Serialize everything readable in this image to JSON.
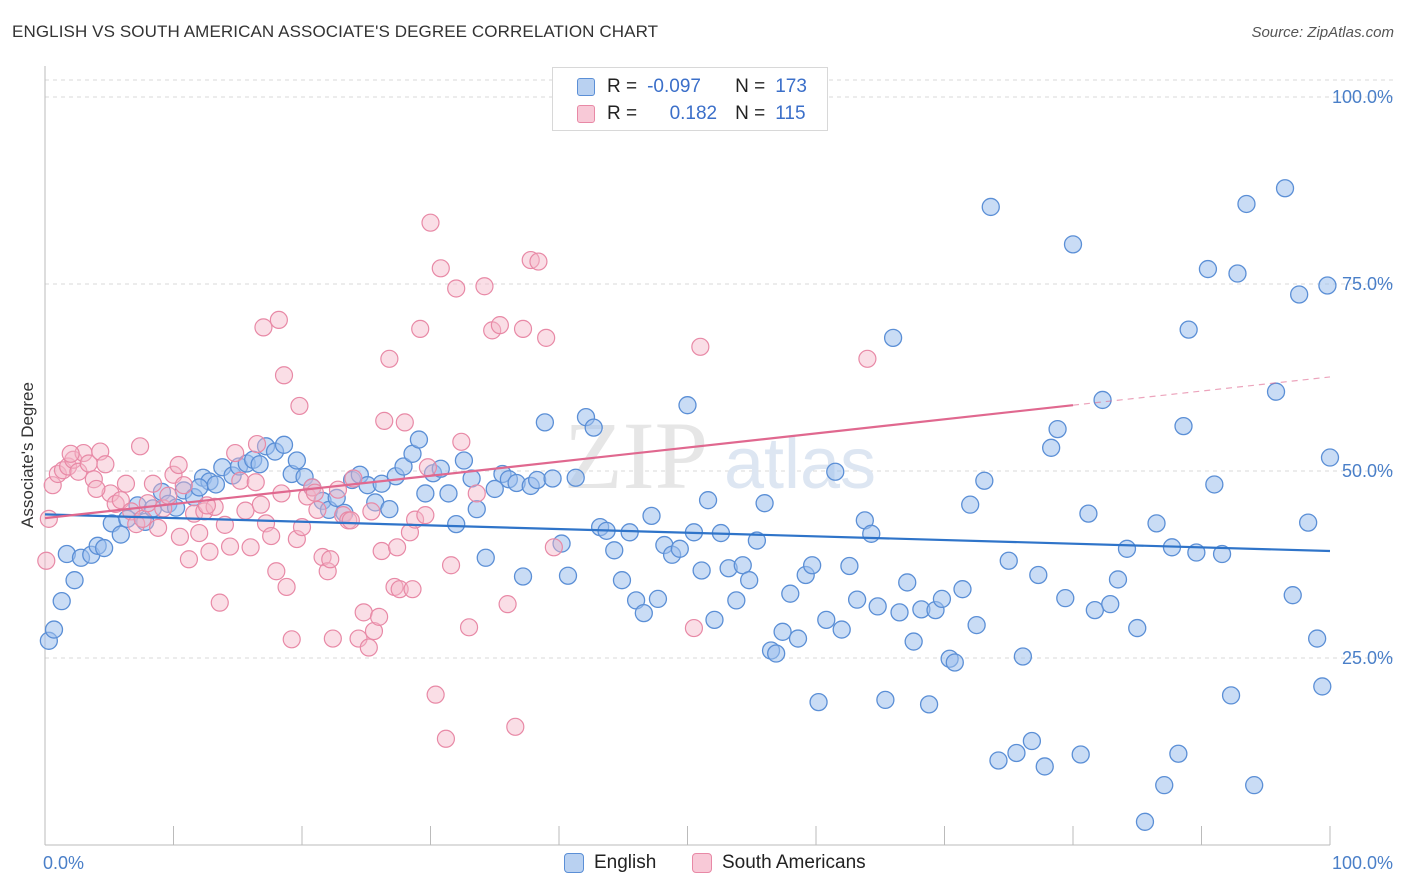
{
  "title": "ENGLISH VS SOUTH AMERICAN ASSOCIATE'S DEGREE CORRELATION CHART",
  "source": "Source: ZipAtlas.com",
  "watermark_zip": "ZIP",
  "watermark_atlas": "atlas",
  "legend": {
    "row1": {
      "r_label": "R =",
      "r_value": "-0.097",
      "n_label": "N =",
      "n_value": "173"
    },
    "row2": {
      "r_label": "R =",
      "r_value": "0.182",
      "n_label": "N =",
      "n_value": "115"
    }
  },
  "colors": {
    "english_fill": "#9dc0ec",
    "english_stroke": "#5b8fd6",
    "english_line": "#2f74c9",
    "sa_fill": "#f5b5c8",
    "sa_stroke": "#e889a6",
    "sa_line": "#e0688f",
    "tick_text": "#4a7fc8",
    "grid": "#d9d9d9"
  },
  "chart_data": {
    "type": "scatter",
    "xlabel": "",
    "ylabel": "Associate's Degree",
    "xlim": [
      0,
      100
    ],
    "ylim": [
      0,
      100
    ],
    "x_tick_labels": [
      "0.0%",
      "100.0%"
    ],
    "y_tick_labels": [
      "100.0%",
      "75.0%",
      "50.0%",
      "25.0%"
    ],
    "y_ticks": [
      100,
      75,
      50,
      25
    ],
    "legend_placement": "bottom",
    "grid": true,
    "series": [
      {
        "name": "English",
        "trend": {
          "x": [
            0,
            100
          ],
          "y": [
            44.2,
            39.3
          ]
        },
        "points": [
          [
            0.3,
            27.3
          ],
          [
            0.7,
            28.8
          ],
          [
            1.3,
            32.6
          ],
          [
            1.7,
            38.9
          ],
          [
            2.3,
            35.4
          ],
          [
            2.8,
            38.4
          ],
          [
            3.6,
            38.8
          ],
          [
            4.1,
            40.0
          ],
          [
            4.6,
            39.7
          ],
          [
            5.2,
            43.0
          ],
          [
            5.9,
            41.5
          ],
          [
            6.4,
            43.6
          ],
          [
            7.2,
            45.4
          ],
          [
            7.8,
            43.2
          ],
          [
            8.4,
            45.0
          ],
          [
            9.1,
            47.2
          ],
          [
            9.6,
            45.6
          ],
          [
            10.2,
            45.1
          ],
          [
            10.8,
            47.4
          ],
          [
            11.6,
            46.5
          ],
          [
            12.3,
            49.1
          ],
          [
            12.8,
            48.6
          ],
          [
            13.3,
            48.2
          ],
          [
            13.8,
            50.5
          ],
          [
            14.6,
            49.4
          ],
          [
            15.1,
            50.6
          ],
          [
            15.7,
            51.0
          ],
          [
            16.2,
            51.5
          ],
          [
            16.7,
            50.9
          ],
          [
            17.2,
            53.3
          ],
          [
            17.9,
            52.6
          ],
          [
            18.6,
            53.5
          ],
          [
            19.2,
            49.6
          ],
          [
            19.6,
            51.4
          ],
          [
            20.2,
            49.2
          ],
          [
            20.8,
            47.8
          ],
          [
            21.6,
            46.0
          ],
          [
            22.1,
            44.8
          ],
          [
            22.7,
            46.4
          ],
          [
            23.3,
            44.4
          ],
          [
            23.9,
            48.8
          ],
          [
            24.5,
            49.5
          ],
          [
            25.1,
            48.1
          ],
          [
            25.7,
            45.8
          ],
          [
            26.2,
            48.3
          ],
          [
            26.8,
            44.9
          ],
          [
            27.3,
            49.3
          ],
          [
            27.9,
            50.6
          ],
          [
            28.6,
            52.3
          ],
          [
            29.1,
            54.2
          ],
          [
            29.6,
            47.0
          ],
          [
            30.2,
            49.7
          ],
          [
            30.8,
            50.3
          ],
          [
            31.4,
            47.0
          ],
          [
            32.0,
            42.9
          ],
          [
            32.6,
            51.4
          ],
          [
            33.2,
            49.0
          ],
          [
            33.6,
            44.9
          ],
          [
            34.3,
            38.4
          ],
          [
            35.0,
            47.6
          ],
          [
            35.6,
            49.6
          ],
          [
            36.1,
            48.9
          ],
          [
            36.7,
            48.4
          ],
          [
            37.2,
            35.9
          ],
          [
            37.8,
            48.0
          ],
          [
            38.3,
            48.8
          ],
          [
            38.9,
            56.5
          ],
          [
            39.5,
            49.0
          ],
          [
            40.2,
            40.3
          ],
          [
            40.7,
            36.0
          ],
          [
            41.3,
            49.1
          ],
          [
            42.1,
            57.2
          ],
          [
            42.7,
            55.8
          ],
          [
            43.2,
            42.5
          ],
          [
            43.7,
            42.0
          ],
          [
            44.3,
            39.4
          ],
          [
            44.9,
            35.4
          ],
          [
            45.5,
            41.8
          ],
          [
            46.0,
            32.7
          ],
          [
            46.6,
            31.0
          ],
          [
            47.2,
            44.0
          ],
          [
            47.7,
            32.9
          ],
          [
            48.2,
            40.1
          ],
          [
            48.8,
            38.8
          ],
          [
            49.4,
            39.6
          ],
          [
            50.0,
            58.8
          ],
          [
            50.5,
            41.8
          ],
          [
            51.1,
            36.7
          ],
          [
            51.6,
            46.1
          ],
          [
            52.1,
            30.1
          ],
          [
            52.6,
            41.7
          ],
          [
            53.2,
            37.0
          ],
          [
            53.8,
            32.7
          ],
          [
            54.3,
            37.4
          ],
          [
            54.8,
            35.4
          ],
          [
            55.4,
            40.7
          ],
          [
            56.0,
            45.7
          ],
          [
            56.5,
            26.0
          ],
          [
            56.9,
            25.6
          ],
          [
            57.4,
            28.5
          ],
          [
            58.0,
            33.6
          ],
          [
            58.6,
            27.6
          ],
          [
            59.2,
            36.1
          ],
          [
            59.7,
            37.4
          ],
          [
            60.2,
            19.1
          ],
          [
            60.8,
            30.1
          ],
          [
            61.5,
            49.9
          ],
          [
            62.0,
            28.8
          ],
          [
            62.6,
            37.3
          ],
          [
            63.2,
            32.8
          ],
          [
            63.8,
            43.4
          ],
          [
            64.3,
            41.6
          ],
          [
            64.8,
            31.9
          ],
          [
            65.4,
            19.4
          ],
          [
            66.0,
            67.8
          ],
          [
            66.5,
            31.1
          ],
          [
            67.1,
            35.1
          ],
          [
            67.6,
            27.2
          ],
          [
            68.2,
            31.5
          ],
          [
            68.8,
            18.8
          ],
          [
            69.3,
            31.4
          ],
          [
            69.8,
            32.9
          ],
          [
            70.4,
            24.9
          ],
          [
            70.8,
            24.4
          ],
          [
            71.4,
            34.2
          ],
          [
            72.0,
            45.5
          ],
          [
            72.5,
            29.4
          ],
          [
            73.1,
            48.7
          ],
          [
            73.6,
            85.3
          ],
          [
            74.2,
            11.3
          ],
          [
            75.0,
            38.0
          ],
          [
            75.6,
            12.3
          ],
          [
            76.1,
            25.2
          ],
          [
            76.8,
            13.9
          ],
          [
            77.3,
            36.1
          ],
          [
            77.8,
            10.5
          ],
          [
            78.3,
            53.1
          ],
          [
            78.8,
            55.6
          ],
          [
            79.4,
            33.0
          ],
          [
            80.0,
            80.3
          ],
          [
            80.6,
            12.1
          ],
          [
            81.2,
            44.3
          ],
          [
            81.7,
            31.4
          ],
          [
            82.3,
            59.5
          ],
          [
            82.9,
            32.2
          ],
          [
            83.5,
            35.5
          ],
          [
            84.2,
            39.6
          ],
          [
            85.0,
            29.0
          ],
          [
            85.6,
            3.1
          ],
          [
            86.5,
            43.0
          ],
          [
            87.1,
            8.0
          ],
          [
            87.7,
            39.8
          ],
          [
            88.2,
            12.2
          ],
          [
            88.6,
            56.0
          ],
          [
            89.0,
            68.9
          ],
          [
            89.6,
            39.1
          ],
          [
            90.5,
            77.0
          ],
          [
            91.0,
            48.2
          ],
          [
            91.6,
            38.9
          ],
          [
            92.3,
            20.0
          ],
          [
            92.8,
            76.4
          ],
          [
            93.5,
            85.7
          ],
          [
            94.1,
            8.0
          ],
          [
            95.8,
            60.6
          ],
          [
            96.5,
            87.8
          ],
          [
            97.1,
            33.4
          ],
          [
            97.6,
            73.6
          ],
          [
            98.3,
            43.1
          ],
          [
            99.0,
            27.6
          ],
          [
            99.4,
            21.2
          ],
          [
            99.8,
            74.8
          ],
          [
            100.0,
            51.8
          ],
          [
            12.0,
            47.8
          ]
        ]
      },
      {
        "name": "South Americans",
        "trend": {
          "x": [
            0,
            80
          ],
          "y": [
            43.7,
            58.8
          ]
        },
        "points": [
          [
            0.1,
            38.0
          ],
          [
            0.3,
            43.6
          ],
          [
            0.6,
            48.1
          ],
          [
            1.0,
            49.6
          ],
          [
            1.4,
            50.1
          ],
          [
            1.8,
            50.6
          ],
          [
            2.2,
            51.5
          ],
          [
            2.6,
            49.9
          ],
          [
            3.0,
            52.4
          ],
          [
            3.4,
            51.0
          ],
          [
            3.8,
            48.9
          ],
          [
            4.3,
            52.6
          ],
          [
            4.7,
            50.9
          ],
          [
            5.1,
            47.0
          ],
          [
            5.5,
            45.6
          ],
          [
            5.9,
            46.1
          ],
          [
            6.3,
            48.3
          ],
          [
            6.7,
            44.6
          ],
          [
            7.1,
            42.9
          ],
          [
            7.6,
            43.6
          ],
          [
            8.0,
            45.7
          ],
          [
            8.4,
            48.3
          ],
          [
            8.8,
            42.4
          ],
          [
            9.2,
            45.0
          ],
          [
            9.6,
            46.7
          ],
          [
            10.0,
            49.5
          ],
          [
            10.4,
            50.8
          ],
          [
            10.8,
            48.1
          ],
          [
            11.2,
            38.2
          ],
          [
            11.6,
            44.3
          ],
          [
            12.0,
            41.7
          ],
          [
            12.4,
            44.6
          ],
          [
            12.8,
            39.2
          ],
          [
            13.2,
            45.2
          ],
          [
            13.6,
            32.4
          ],
          [
            14.0,
            42.8
          ],
          [
            14.4,
            39.9
          ],
          [
            14.8,
            52.4
          ],
          [
            15.2,
            48.7
          ],
          [
            15.6,
            44.7
          ],
          [
            16.0,
            39.8
          ],
          [
            16.4,
            48.5
          ],
          [
            16.8,
            45.5
          ],
          [
            17.2,
            43.0
          ],
          [
            17.6,
            41.3
          ],
          [
            18.0,
            36.6
          ],
          [
            18.4,
            47.0
          ],
          [
            18.8,
            34.5
          ],
          [
            19.2,
            27.5
          ],
          [
            19.6,
            40.9
          ],
          [
            20.0,
            42.5
          ],
          [
            20.4,
            46.6
          ],
          [
            20.8,
            47.8
          ],
          [
            21.2,
            44.8
          ],
          [
            21.6,
            38.5
          ],
          [
            22.0,
            36.6
          ],
          [
            22.4,
            27.6
          ],
          [
            22.8,
            47.5
          ],
          [
            23.2,
            44.1
          ],
          [
            23.6,
            43.4
          ],
          [
            24.0,
            49.0
          ],
          [
            24.4,
            27.6
          ],
          [
            24.8,
            31.1
          ],
          [
            25.2,
            26.4
          ],
          [
            25.6,
            28.6
          ],
          [
            26.0,
            30.5
          ],
          [
            26.4,
            56.7
          ],
          [
            26.8,
            65.0
          ],
          [
            27.2,
            34.5
          ],
          [
            27.6,
            34.2
          ],
          [
            28.0,
            56.5
          ],
          [
            28.4,
            41.8
          ],
          [
            28.8,
            43.5
          ],
          [
            29.2,
            69.0
          ],
          [
            29.6,
            44.1
          ],
          [
            30.0,
            83.2
          ],
          [
            30.4,
            20.1
          ],
          [
            30.8,
            77.1
          ],
          [
            31.2,
            14.2
          ],
          [
            31.6,
            37.4
          ],
          [
            32.0,
            74.4
          ],
          [
            32.4,
            53.9
          ],
          [
            33.0,
            29.1
          ],
          [
            33.6,
            47.0
          ],
          [
            34.2,
            74.7
          ],
          [
            34.8,
            68.8
          ],
          [
            35.4,
            69.5
          ],
          [
            36.0,
            32.2
          ],
          [
            36.6,
            15.8
          ],
          [
            37.2,
            69.0
          ],
          [
            37.8,
            78.2
          ],
          [
            38.4,
            78.0
          ],
          [
            39.0,
            67.8
          ],
          [
            39.6,
            39.8
          ],
          [
            16.5,
            53.6
          ],
          [
            7.4,
            53.3
          ],
          [
            10.5,
            41.2
          ],
          [
            12.6,
            45.4
          ],
          [
            17.0,
            69.2
          ],
          [
            18.2,
            70.2
          ],
          [
            18.6,
            62.8
          ],
          [
            19.8,
            58.7
          ],
          [
            21.0,
            47.1
          ],
          [
            22.2,
            38.2
          ],
          [
            23.8,
            43.4
          ],
          [
            25.4,
            44.6
          ],
          [
            26.2,
            39.3
          ],
          [
            27.4,
            39.8
          ],
          [
            28.6,
            34.2
          ],
          [
            29.8,
            50.5
          ],
          [
            51.0,
            66.6
          ],
          [
            64.0,
            65.0
          ],
          [
            50.5,
            29.0
          ],
          [
            2.0,
            52.3
          ],
          [
            4.0,
            47.6
          ]
        ]
      }
    ]
  },
  "bottom_legend": {
    "english": "English",
    "south_americans": "South Americans"
  }
}
